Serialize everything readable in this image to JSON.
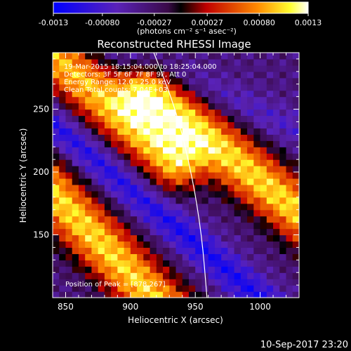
{
  "colorbar": {
    "tick_labels": [
      "-0.0013",
      "-0.00080",
      "-0.00027",
      "0.00027",
      "0.00080",
      "0.0013"
    ],
    "tick_values": [
      -0.0013,
      -0.0008,
      -0.00027,
      0.00027,
      0.0008,
      0.0013
    ],
    "range": [
      -0.0013,
      0.0013
    ],
    "units_line": "(photons cm⁻² s⁻¹ asec⁻²)"
  },
  "annotations": {
    "time": "19-Mar-2015 18:15:04.000 to 18:25:04.000",
    "detectors": "Detectors: 3F 5F 6F 7F 8F 9F, Att 0",
    "energy": "Energy Range: 12.0 - 25.0 keV",
    "clean": "Clean    Total counts: 7.04E+03",
    "peak": "Position of Peak = [878,267]"
  },
  "footer": {
    "timestamp": "10-Sep-2017 23:20"
  },
  "colors": {
    "background": "#000000",
    "axes": "#ffffff",
    "limb": "#ffffff"
  },
  "chart_data": {
    "type": "heatmap",
    "title": "Reconstructed RHESSI Image",
    "xlabel": "Heliocentric X (arcsec)",
    "ylabel": "Heliocentric Y (arcsec)",
    "xlim": [
      840,
      1030
    ],
    "ylim": [
      100,
      295
    ],
    "x_ticks": [
      850,
      900,
      950,
      1000
    ],
    "y_ticks": [
      150,
      200,
      250
    ],
    "x_tick_labels": [
      "850",
      "900",
      "950",
      "1000"
    ],
    "y_tick_labels": [
      "150",
      "200",
      "250"
    ],
    "colormap": "blue-purple-red-yellow-white",
    "grid": false,
    "peak": {
      "x": 878,
      "y": 267
    },
    "limb_arc": [
      [
        918,
        295
      ],
      [
        935,
        250
      ],
      [
        947,
        200
      ],
      [
        955,
        150
      ],
      [
        959,
        100
      ]
    ],
    "bright_ridges": [
      {
        "from": [
          848,
          286
        ],
        "to": [
          922,
          218
        ],
        "peak_value": 0.0011
      },
      {
        "from": [
          930,
          252
        ],
        "to": [
          1030,
          168
        ],
        "peak_value": 0.0012
      },
      {
        "from": [
          843,
          180
        ],
        "to": [
          918,
          100
        ],
        "peak_value": 0.0012
      }
    ],
    "dark_troughs": [
      {
        "from": [
          900,
          295
        ],
        "to": [
          1030,
          232
        ],
        "min_value": -0.00075
      },
      {
        "from": [
          840,
          238
        ],
        "to": [
          1000,
          100
        ],
        "min_value": -0.0011
      }
    ]
  }
}
